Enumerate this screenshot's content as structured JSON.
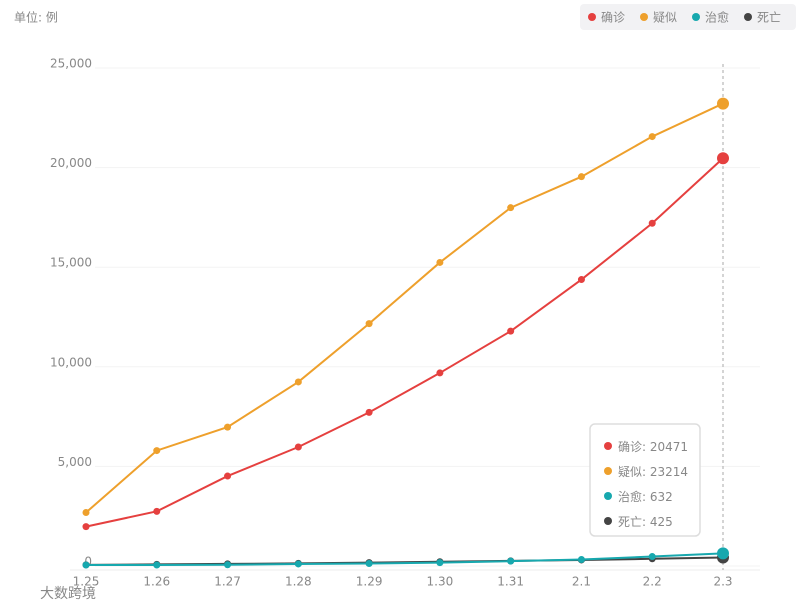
{
  "chart_data": {
    "type": "line",
    "unit_label": "单位: 例",
    "watermark": "大数跨境",
    "categories": [
      "1.25",
      "1.26",
      "1.27",
      "1.28",
      "1.29",
      "1.30",
      "1.31",
      "2.1",
      "2.2",
      "2.3"
    ],
    "series": [
      {
        "name": "确诊",
        "color": "#e5403f",
        "values": [
          1975,
          2744,
          4515,
          5974,
          7711,
          9692,
          11791,
          14380,
          17205,
          20471
        ]
      },
      {
        "name": "疑似",
        "color": "#eea02c",
        "values": [
          2684,
          5794,
          6973,
          9239,
          12167,
          15238,
          17988,
          19544,
          21558,
          23214
        ]
      },
      {
        "name": "治愈",
        "color": "#17a8ae",
        "values": [
          49,
          51,
          60,
          103,
          124,
          171,
          243,
          328,
          475,
          632
        ]
      },
      {
        "name": "死亡",
        "color": "#444444",
        "values": [
          56,
          80,
          106,
          132,
          170,
          213,
          259,
          304,
          361,
          425
        ]
      }
    ],
    "ylim": [
      0,
      25000
    ],
    "yticks": [
      0,
      {
        "value": 5000,
        "label": "5,000"
      },
      {
        "value": 10000,
        "label": "10,000"
      },
      {
        "value": 15000,
        "label": "15,000"
      },
      {
        "value": 20000,
        "label": "20,000"
      },
      {
        "value": 25000,
        "label": "25,000"
      }
    ],
    "grid": true,
    "legend": "top-right",
    "tooltip_index": 9
  }
}
